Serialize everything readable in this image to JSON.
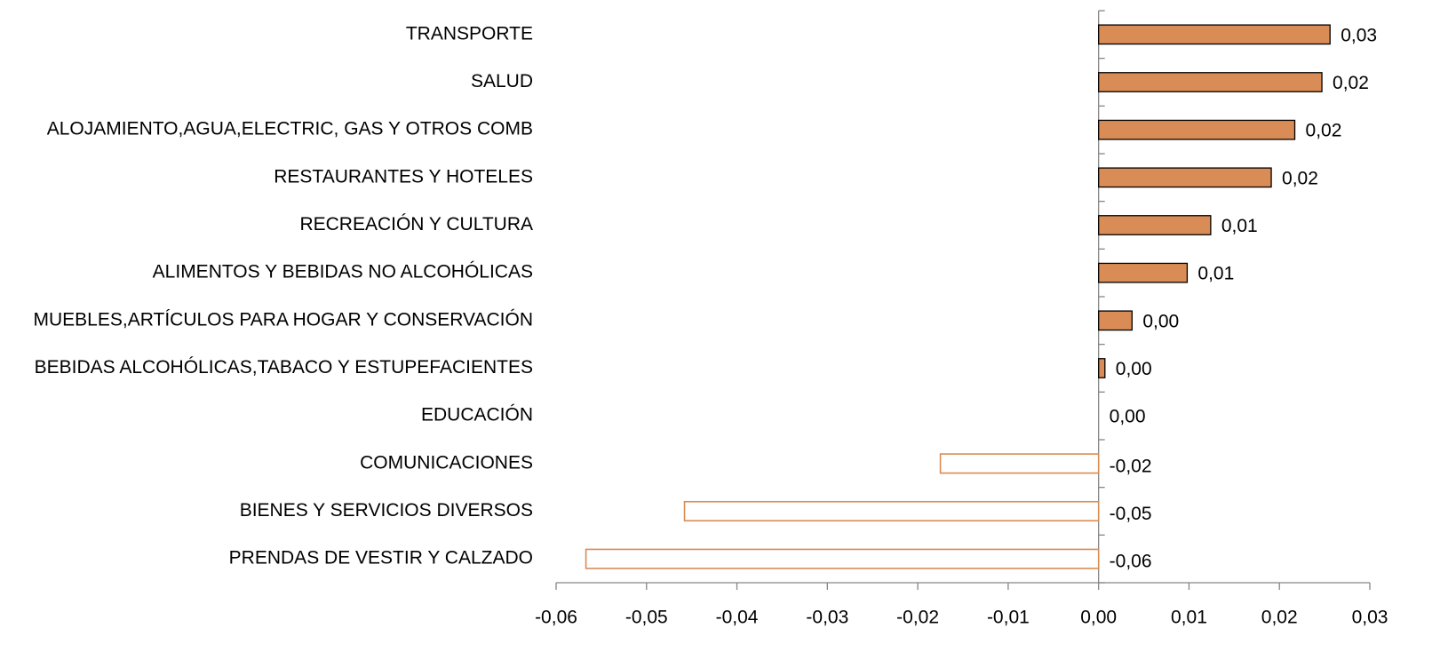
{
  "chart_data": {
    "type": "hbar",
    "categories": [
      "TRANSPORTE",
      "SALUD",
      "ALOJAMIENTO,AGUA,ELECTRIC, GAS Y OTROS COMB",
      "RESTAURANTES Y HOTELES",
      "RECREACIÓN Y CULTURA",
      "ALIMENTOS Y BEBIDAS NO ALCOHÓLICAS",
      "MUEBLES,ARTÍCULOS PARA HOGAR Y CONSERVACIÓN",
      "BEBIDAS ALCOHÓLICAS,TABACO Y ESTUPEFACIENTES",
      "EDUCACIÓN",
      "COMUNICACIONES",
      "BIENES Y SERVICIOS DIVERSOS",
      "PRENDAS DE VESTIR Y CALZADO"
    ],
    "values": [
      0.0256,
      0.0247,
      0.0217,
      0.0191,
      0.0124,
      0.0098,
      0.0037,
      0.0007,
      0.0,
      -0.0175,
      -0.0458,
      -0.0567
    ],
    "value_labels": [
      "0,03",
      "0,02",
      "0,02",
      "0,02",
      "0,01",
      "0,01",
      "0,00",
      "0,00",
      "0,00",
      "-0,02",
      "-0,05",
      "-0,06"
    ],
    "color": "#d98c55",
    "invert_if_negative": true,
    "xlim": [
      -0.06,
      0.03
    ],
    "xticks": [
      {
        "value": -0.06,
        "label": "-0,06"
      },
      {
        "value": -0.05,
        "label": "-0,05"
      },
      {
        "value": -0.04,
        "label": "-0,04"
      },
      {
        "value": -0.03,
        "label": "-0,03"
      },
      {
        "value": -0.02,
        "label": "-0,02"
      },
      {
        "value": -0.01,
        "label": "-0,01"
      },
      {
        "value": 0,
        "label": "0,00"
      },
      {
        "value": 0.01,
        "label": "0,01"
      },
      {
        "value": 0.02,
        "label": "0,02"
      },
      {
        "value": 0.03,
        "label": "0,03"
      }
    ],
    "grid": false
  }
}
